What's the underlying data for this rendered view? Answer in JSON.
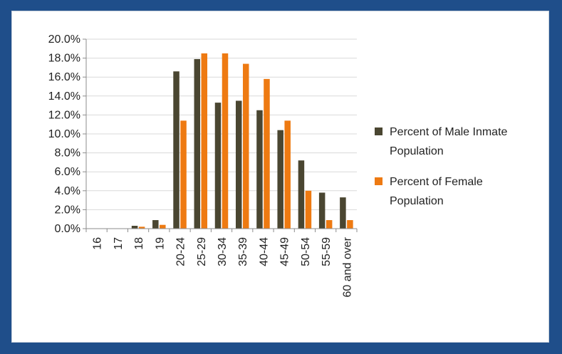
{
  "chart_data": {
    "type": "bar",
    "categories": [
      "16",
      "17",
      "18",
      "19",
      "20-24",
      "25-29",
      "30-34",
      "35-39",
      "40-44",
      "45-49",
      "50-54",
      "55-59",
      "60 and over"
    ],
    "series": [
      {
        "name": "Percent of Male Inmate Population",
        "color": "#4a4631",
        "values": [
          0.0,
          0.0,
          0.3,
          0.9,
          16.6,
          17.9,
          13.3,
          13.5,
          12.5,
          10.4,
          7.2,
          3.8,
          3.3
        ]
      },
      {
        "name": "Percent of Female Population",
        "color": "#ee7a12",
        "values": [
          0.0,
          0.0,
          0.2,
          0.4,
          11.4,
          18.5,
          18.5,
          17.4,
          15.8,
          11.4,
          4.0,
          0.9,
          0.9
        ]
      }
    ],
    "title": "",
    "xlabel": "",
    "ylabel": "",
    "ylim": [
      0,
      20
    ],
    "yticks": [
      "0.0%",
      "2.0%",
      "4.0%",
      "6.0%",
      "8.0%",
      "10.0%",
      "12.0%",
      "14.0%",
      "16.0%",
      "18.0%",
      "20.0%"
    ],
    "grid": true,
    "legend_position": "right"
  }
}
